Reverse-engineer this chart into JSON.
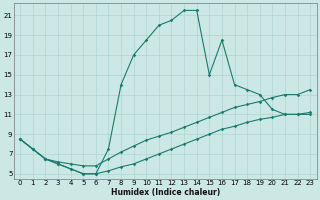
{
  "xlabel": "Humidex (Indice chaleur)",
  "bg_color": "#cce8e5",
  "line_color": "#1a7a6e",
  "grid_color": "#b0d4d0",
  "xlim": [
    -0.5,
    23.5
  ],
  "ylim": [
    4.5,
    22.2
  ],
  "xticks": [
    0,
    1,
    2,
    3,
    4,
    5,
    6,
    7,
    8,
    9,
    10,
    11,
    12,
    13,
    14,
    15,
    16,
    17,
    18,
    19,
    20,
    21,
    22,
    23
  ],
  "yticks": [
    5,
    7,
    9,
    11,
    13,
    15,
    17,
    19,
    21
  ],
  "series": [
    {
      "x": [
        0,
        1,
        2,
        3,
        4,
        5,
        6,
        7,
        8,
        9,
        10,
        11,
        12,
        13,
        14,
        15,
        16,
        17,
        18,
        19,
        20,
        21,
        22,
        23
      ],
      "y": [
        8.5,
        7.5,
        6.5,
        6.0,
        5.5,
        5.0,
        5.0,
        7.5,
        14.0,
        17.0,
        18.5,
        20.0,
        20.5,
        21.5,
        21.5,
        15.0,
        18.5,
        14.0,
        13.5,
        13.0,
        11.5,
        11.0,
        11.0,
        11.0
      ]
    },
    {
      "x": [
        0,
        1,
        2,
        3,
        4,
        5,
        6,
        7,
        8,
        9,
        10,
        11,
        12,
        13,
        14,
        15,
        16,
        17,
        18,
        19,
        20,
        21,
        22,
        23
      ],
      "y": [
        8.5,
        7.5,
        6.5,
        6.2,
        6.0,
        5.8,
        5.8,
        6.5,
        7.2,
        7.8,
        8.4,
        8.8,
        9.2,
        9.7,
        10.2,
        10.7,
        11.2,
        11.7,
        12.0,
        12.3,
        12.7,
        13.0,
        13.0,
        13.5
      ]
    },
    {
      "x": [
        0,
        1,
        2,
        3,
        4,
        5,
        6,
        7,
        8,
        9,
        10,
        11,
        12,
        13,
        14,
        15,
        16,
        17,
        18,
        19,
        20,
        21,
        22,
        23
      ],
      "y": [
        8.5,
        7.5,
        6.5,
        6.0,
        5.5,
        5.0,
        5.0,
        5.3,
        5.7,
        6.0,
        6.5,
        7.0,
        7.5,
        8.0,
        8.5,
        9.0,
        9.5,
        9.8,
        10.2,
        10.5,
        10.7,
        11.0,
        11.0,
        11.2
      ]
    }
  ],
  "marker_style": "D",
  "marker_size": 1.8,
  "linewidth": 0.8,
  "tick_fontsize": 5,
  "xlabel_fontsize": 5.5,
  "xlabel_fontweight": "bold"
}
